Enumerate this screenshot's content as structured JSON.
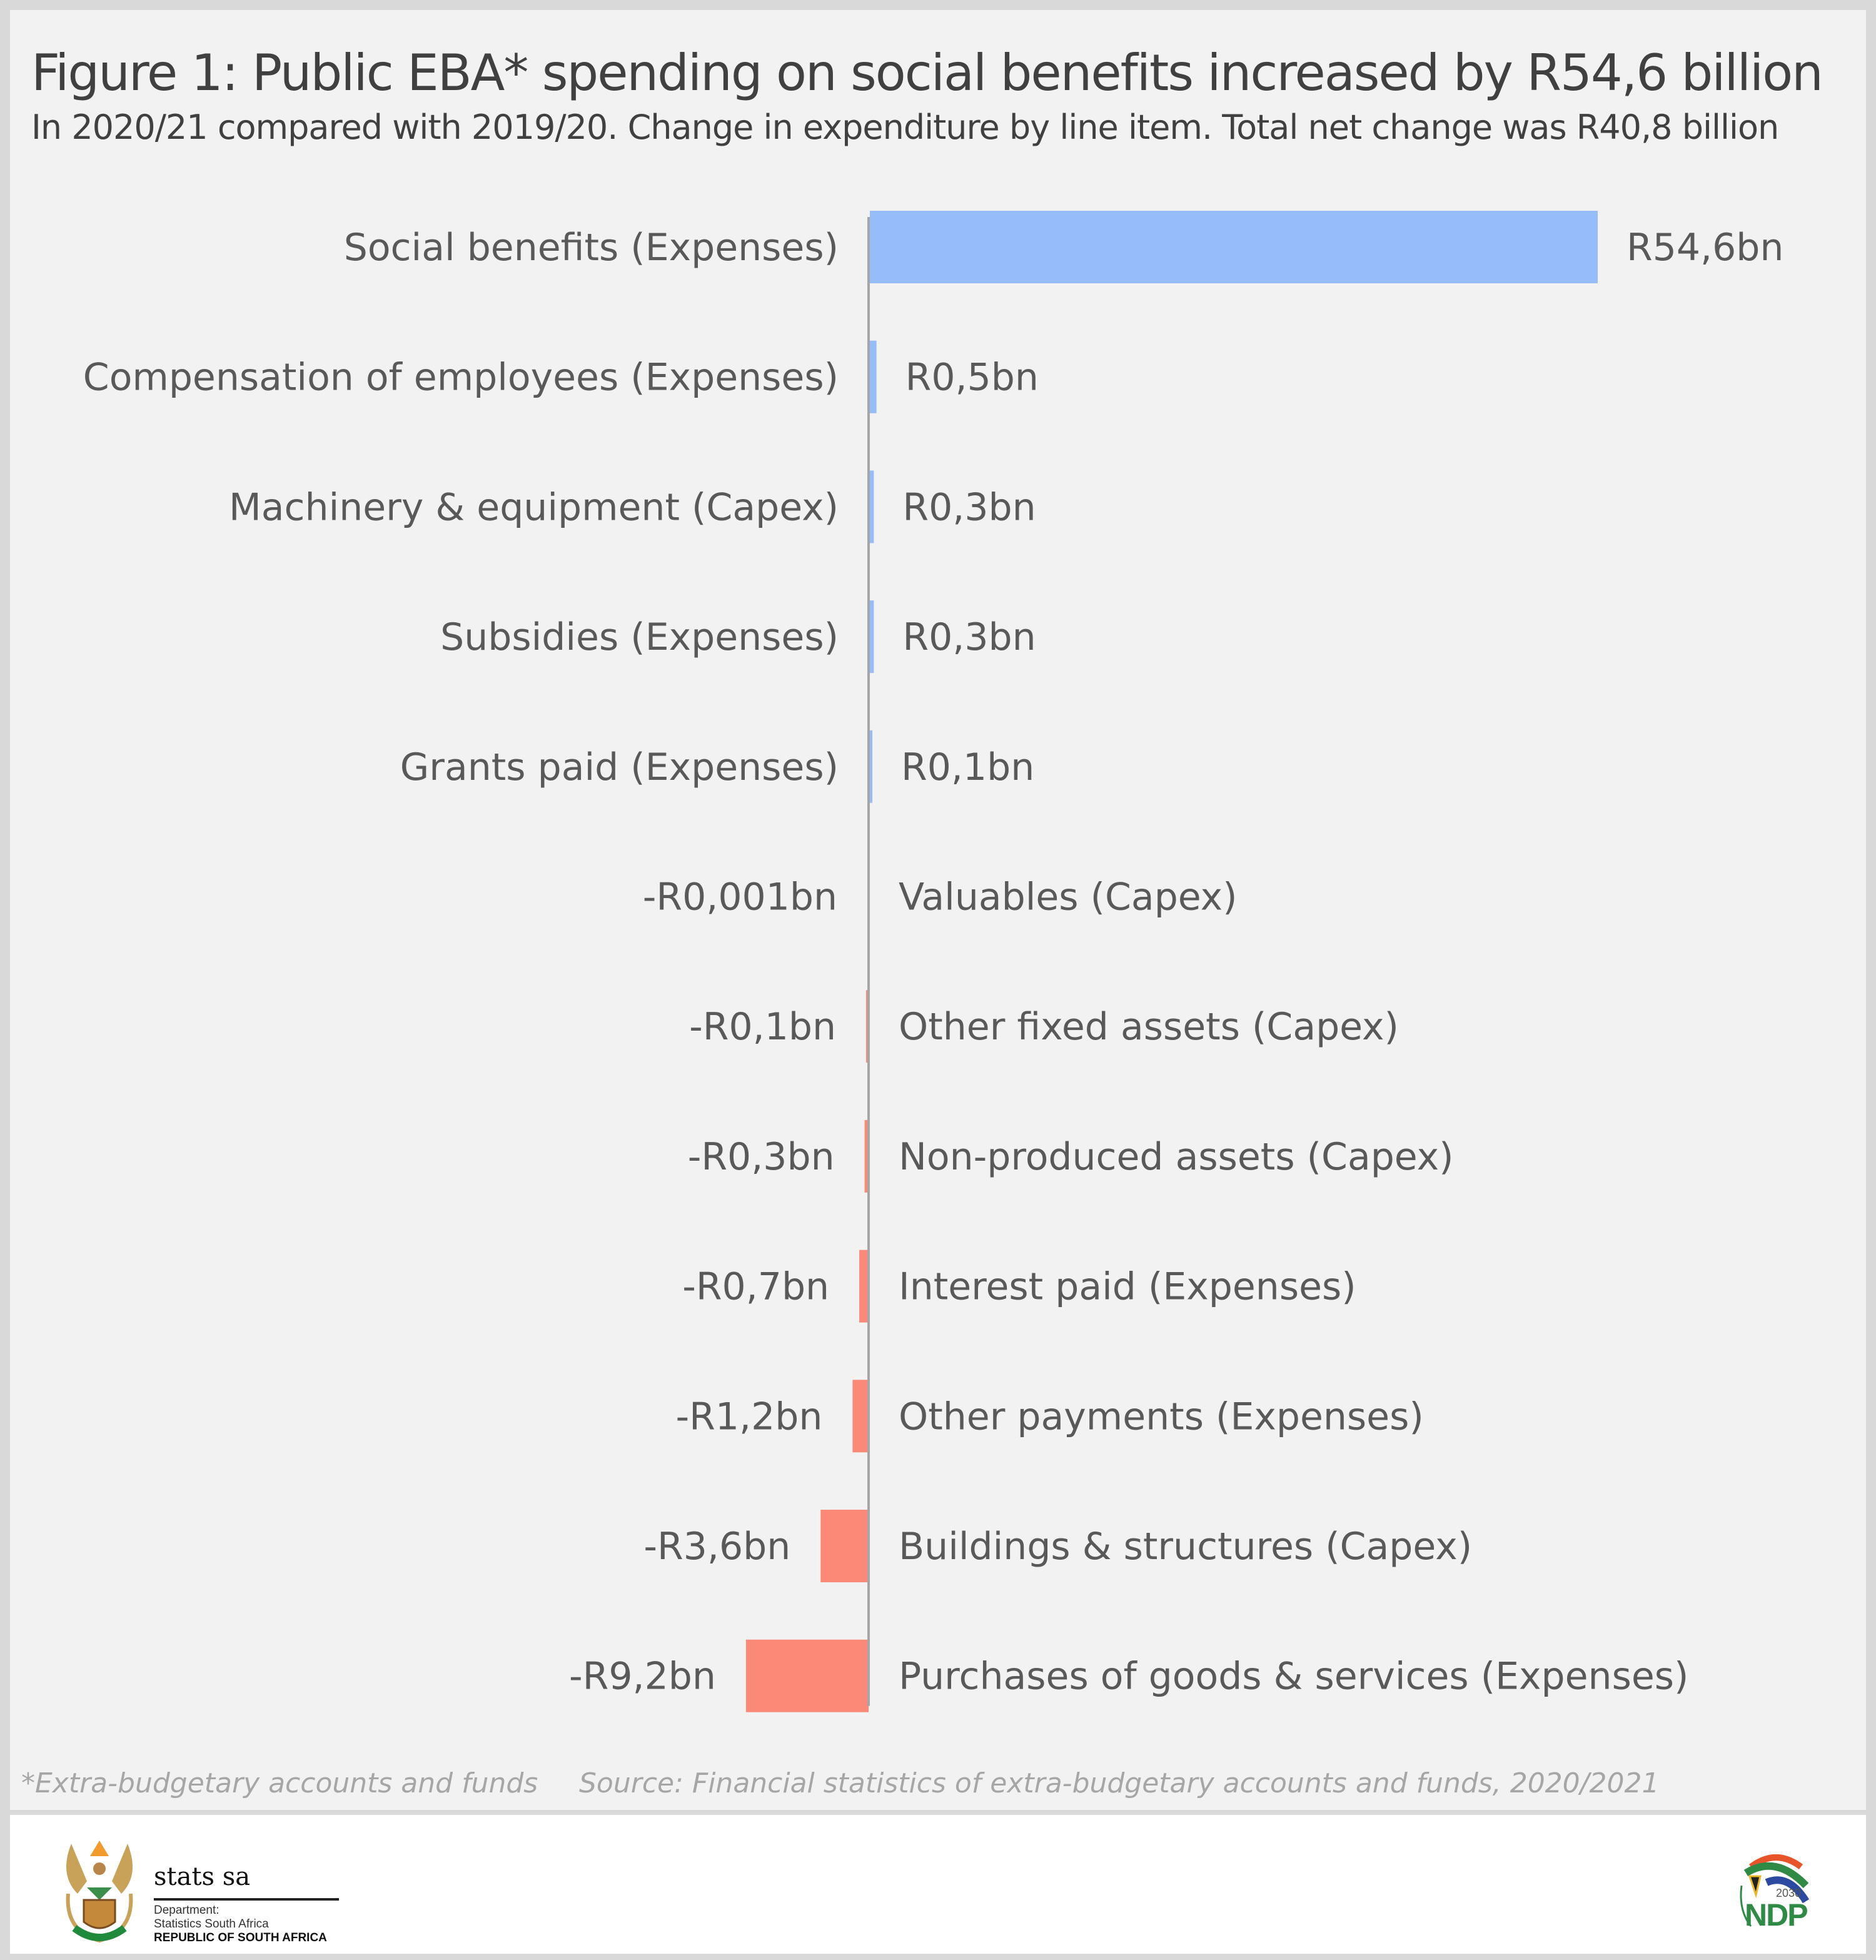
{
  "header": {
    "title": "Figure 1: Public EBA* spending on social benefits increased by R54,6 billion",
    "subtitle": "In 2020/21 compared with 2019/20. Change in expenditure by line item. Total net change was R40,8 billion"
  },
  "chart_data": {
    "type": "bar",
    "orientation": "horizontal",
    "title": "Figure 1: Public EBA* spending on social benefits increased by R54,6 billion",
    "subtitle": "In 2020/21 compared with 2019/20. Change in expenditure by line item. Total net change was R40,8 billion",
    "xlabel": "",
    "ylabel": "",
    "unit": "R billion",
    "xlim": [
      -9.2,
      54.6
    ],
    "grid": false,
    "categories": [
      "Social benefits (Expenses)",
      "Compensation of employees (Expenses)",
      "Machinery & equipment (Capex)",
      "Subsidies (Expenses)",
      "Grants paid (Expenses)",
      "Valuables (Capex)",
      "Other fixed assets (Capex)",
      "Non-produced assets (Capex)",
      "Interest paid (Expenses)",
      "Other payments (Expenses)",
      "Buildings & structures (Capex)",
      "Purchases of goods & services (Expenses)"
    ],
    "values": [
      54.6,
      0.5,
      0.3,
      0.3,
      0.1,
      -0.001,
      -0.1,
      -0.3,
      -0.7,
      -1.2,
      -3.6,
      -9.2
    ],
    "data_labels": [
      "R54,6bn",
      "R0,5bn",
      "R0,3bn",
      "R0,3bn",
      "R0,1bn",
      "-R0,001bn",
      "-R0,1bn",
      "-R0,3bn",
      "-R0,7bn",
      "-R1,2bn",
      "-R3,6bn",
      "-R9,2bn"
    ],
    "colors": {
      "positive": "#96bcf9",
      "negative": "#fa8978",
      "axis": "#a6a6a6",
      "text": "#595959"
    }
  },
  "footer": {
    "note": "*Extra-budgetary accounts and funds",
    "source": "Source: Financial statistics of extra-budgetary accounts and funds, 2020/2021"
  },
  "logos": {
    "statssa": {
      "name": "stats sa",
      "line1": "Department:",
      "line2": "Statistics South Africa",
      "line3": "REPUBLIC OF SOUTH AFRICA"
    },
    "ndp": {
      "year": "2030",
      "name": "NDP"
    }
  }
}
